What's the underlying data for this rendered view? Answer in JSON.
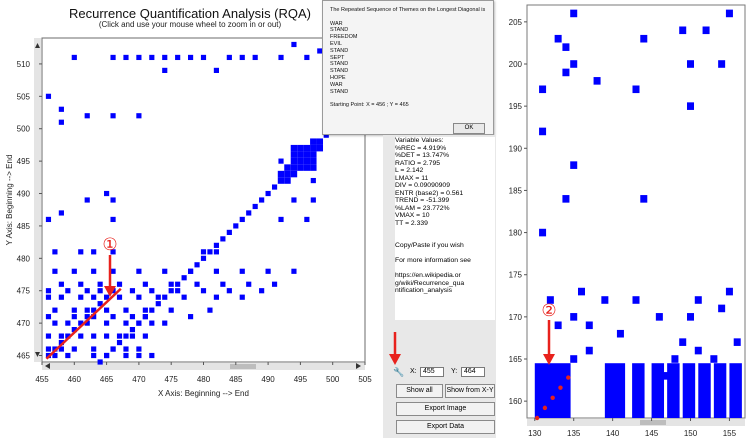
{
  "left_chart": {
    "title": "Recurrence Quantification Analysis (RQA)",
    "subtitle": "(Click and use your mouse wheel to zoom in or out)",
    "xlabel": "X Axis: Beginning --> End",
    "ylabel": "Y Axis: Beginning --> End",
    "xticks": [
      "455",
      "460",
      "465",
      "470",
      "475",
      "480",
      "485",
      "490",
      "495",
      "500",
      "505"
    ],
    "yticks": [
      "465",
      "470",
      "475",
      "480",
      "485",
      "490",
      "495",
      "500",
      "505",
      "510"
    ],
    "annotation_1": "①",
    "point_color": "#0000ff",
    "line_color": "#e8211c"
  },
  "right_chart": {
    "xticks": [
      "130",
      "135",
      "140",
      "145",
      "150",
      "155"
    ],
    "yticks": [
      "160",
      "165",
      "170",
      "175",
      "180",
      "185",
      "190",
      "195",
      "200",
      "205"
    ],
    "annotation_2": "②"
  },
  "popup": {
    "heading": "The Repeated Sequence of Themes on the Longest Diagonal is",
    "themes": [
      "WAR",
      "STAND",
      "FREEDOM",
      "EVIL",
      "STAND",
      "SEPT",
      "STAND",
      "STAND",
      "HOPE",
      "WAR",
      "STAND"
    ],
    "starting_point": "Starting Point: X =  456 ; Y =  465",
    "ok_label": "OK"
  },
  "stats": {
    "lines": [
      "Variable Values:",
      "%REC = 4.919%",
      "%DET = 13.747%",
      "RATIO = 2.795",
      "L = 2.142",
      "LMAX = 11",
      "DIV = 0.09090909",
      "ENTR (base2) = 0.561",
      "TREND = -51.399",
      "%LAM = 23.772%",
      "VMAX = 10",
      "TT = 2.339"
    ],
    "copy_note": "Copy/Paste if you wish",
    "info_note": "For more information see",
    "url": "https://en.wikipedia.org/wiki/Recurrence_quantification_analysis"
  },
  "controls": {
    "x_label": "X:",
    "x_value": "455",
    "y_label": "Y:",
    "y_value": "464",
    "show_all": "Show all",
    "show_from_xy": "Show from X-Y",
    "export_image": "Export Image",
    "export_data": "Export Data",
    "wrench_icon": "wrench-icon"
  },
  "chart_data": [
    {
      "type": "scatter",
      "title": "Recurrence Quantification Analysis (RQA)",
      "xlabel": "X Axis: Beginning --> End",
      "ylabel": "Y Axis: Beginning --> End",
      "xlim": [
        455,
        505
      ],
      "ylim": [
        464,
        514
      ],
      "diagonal": {
        "from": 464,
        "to": 513
      },
      "points": [
        [
          456,
          465
        ],
        [
          457,
          466
        ],
        [
          458,
          467
        ],
        [
          459,
          468
        ],
        [
          460,
          469
        ],
        [
          461,
          470
        ],
        [
          462,
          471
        ],
        [
          463,
          472
        ],
        [
          464,
          473
        ],
        [
          465,
          474
        ],
        [
          466,
          475
        ],
        [
          457,
          465
        ],
        [
          459,
          465
        ],
        [
          463,
          465
        ],
        [
          465,
          465
        ],
        [
          468,
          465
        ],
        [
          470,
          465
        ],
        [
          472,
          465
        ],
        [
          456,
          466
        ],
        [
          458,
          466
        ],
        [
          460,
          466
        ],
        [
          463,
          466
        ],
        [
          466,
          466
        ],
        [
          468,
          466
        ],
        [
          470,
          466
        ],
        [
          456,
          468
        ],
        [
          458,
          468
        ],
        [
          461,
          468
        ],
        [
          463,
          468
        ],
        [
          465,
          468
        ],
        [
          467,
          468
        ],
        [
          469,
          468
        ],
        [
          471,
          468
        ],
        [
          457,
          470
        ],
        [
          459,
          470
        ],
        [
          462,
          470
        ],
        [
          465,
          470
        ],
        [
          468,
          470
        ],
        [
          470,
          470
        ],
        [
          472,
          470
        ],
        [
          474,
          470
        ],
        [
          456,
          471
        ],
        [
          460,
          471
        ],
        [
          463,
          471
        ],
        [
          466,
          471
        ],
        [
          469,
          471
        ],
        [
          471,
          471
        ],
        [
          478,
          471
        ],
        [
          457,
          472
        ],
        [
          460,
          472
        ],
        [
          462,
          472
        ],
        [
          465,
          472
        ],
        [
          468,
          472
        ],
        [
          471,
          472
        ],
        [
          475,
          472
        ],
        [
          481,
          472
        ],
        [
          456,
          474
        ],
        [
          458,
          474
        ],
        [
          461,
          474
        ],
        [
          463,
          474
        ],
        [
          467,
          474
        ],
        [
          470,
          474
        ],
        [
          473,
          474
        ],
        [
          477,
          474
        ],
        [
          482,
          474
        ],
        [
          486,
          474
        ],
        [
          456,
          475
        ],
        [
          459,
          475
        ],
        [
          462,
          475
        ],
        [
          464,
          475
        ],
        [
          469,
          475
        ],
        [
          472,
          475
        ],
        [
          476,
          475
        ],
        [
          480,
          475
        ],
        [
          484,
          475
        ],
        [
          489,
          475
        ],
        [
          458,
          476
        ],
        [
          461,
          476
        ],
        [
          464,
          476
        ],
        [
          467,
          476
        ],
        [
          471,
          476
        ],
        [
          475,
          476
        ],
        [
          479,
          476
        ],
        [
          483,
          476
        ],
        [
          487,
          476
        ],
        [
          491,
          476
        ],
        [
          457,
          478
        ],
        [
          460,
          478
        ],
        [
          463,
          478
        ],
        [
          466,
          478
        ],
        [
          470,
          478
        ],
        [
          474,
          478
        ],
        [
          478,
          478
        ],
        [
          482,
          478
        ],
        [
          486,
          478
        ],
        [
          490,
          478
        ],
        [
          494,
          478
        ],
        [
          457,
          481
        ],
        [
          461,
          481
        ],
        [
          463,
          481
        ],
        [
          466,
          481
        ],
        [
          480,
          481
        ],
        [
          482,
          481
        ],
        [
          456,
          486
        ],
        [
          458,
          487
        ],
        [
          466,
          486
        ],
        [
          492,
          486
        ],
        [
          496,
          486
        ],
        [
          462,
          489
        ],
        [
          465,
          490
        ],
        [
          466,
          489
        ],
        [
          494,
          489
        ],
        [
          497,
          489
        ],
        [
          493,
          493
        ],
        [
          494,
          494
        ],
        [
          495,
          495
        ],
        [
          496,
          496
        ],
        [
          497,
          497
        ],
        [
          498,
          498
        ],
        [
          492,
          495
        ],
        [
          497,
          492
        ],
        [
          456,
          505
        ],
        [
          458,
          503
        ],
        [
          458,
          501
        ],
        [
          462,
          502
        ],
        [
          466,
          502
        ],
        [
          470,
          502
        ],
        [
          460,
          511
        ],
        [
          466,
          511
        ],
        [
          468,
          511
        ],
        [
          470,
          511
        ],
        [
          472,
          511
        ],
        [
          474,
          511
        ],
        [
          476,
          511
        ],
        [
          478,
          511
        ],
        [
          480,
          511
        ],
        [
          484,
          511
        ],
        [
          486,
          511
        ],
        [
          488,
          511
        ],
        [
          492,
          511
        ],
        [
          496,
          511
        ],
        [
          500,
          511
        ],
        [
          474,
          509
        ],
        [
          482,
          509
        ],
        [
          494,
          513
        ],
        [
          498,
          512
        ]
      ]
    },
    {
      "type": "scatter",
      "xlim": [
        129,
        157
      ],
      "ylim": [
        158,
        207
      ],
      "diagonal_highlight": {
        "from": 130,
        "to": 134
      },
      "points": [
        [
          131,
          197
        ],
        [
          131,
          192
        ],
        [
          131,
          180
        ],
        [
          134,
          184
        ],
        [
          135,
          206
        ],
        [
          133,
          203
        ],
        [
          134,
          202
        ],
        [
          135,
          200
        ],
        [
          134,
          199
        ],
        [
          135,
          188
        ],
        [
          138,
          198
        ],
        [
          143,
          197
        ],
        [
          144,
          203
        ],
        [
          149,
          204
        ],
        [
          150,
          200
        ],
        [
          150,
          195
        ],
        [
          150,
          170
        ],
        [
          152,
          204
        ],
        [
          154,
          200
        ],
        [
          155,
          206
        ],
        [
          135,
          170
        ],
        [
          135,
          165
        ],
        [
          136,
          173
        ],
        [
          137,
          169
        ],
        [
          141,
          168
        ],
        [
          143,
          172
        ],
        [
          146,
          170
        ],
        [
          148,
          165
        ],
        [
          151,
          172
        ],
        [
          154,
          171
        ],
        [
          155,
          173
        ],
        [
          132,
          172
        ],
        [
          133,
          169
        ],
        [
          137,
          166
        ],
        [
          139,
          172
        ],
        [
          143,
          164
        ],
        [
          144,
          184
        ],
        [
          147,
          163
        ],
        [
          149,
          167
        ],
        [
          151,
          166
        ],
        [
          153,
          165
        ],
        [
          156,
          167
        ]
      ]
    }
  ]
}
